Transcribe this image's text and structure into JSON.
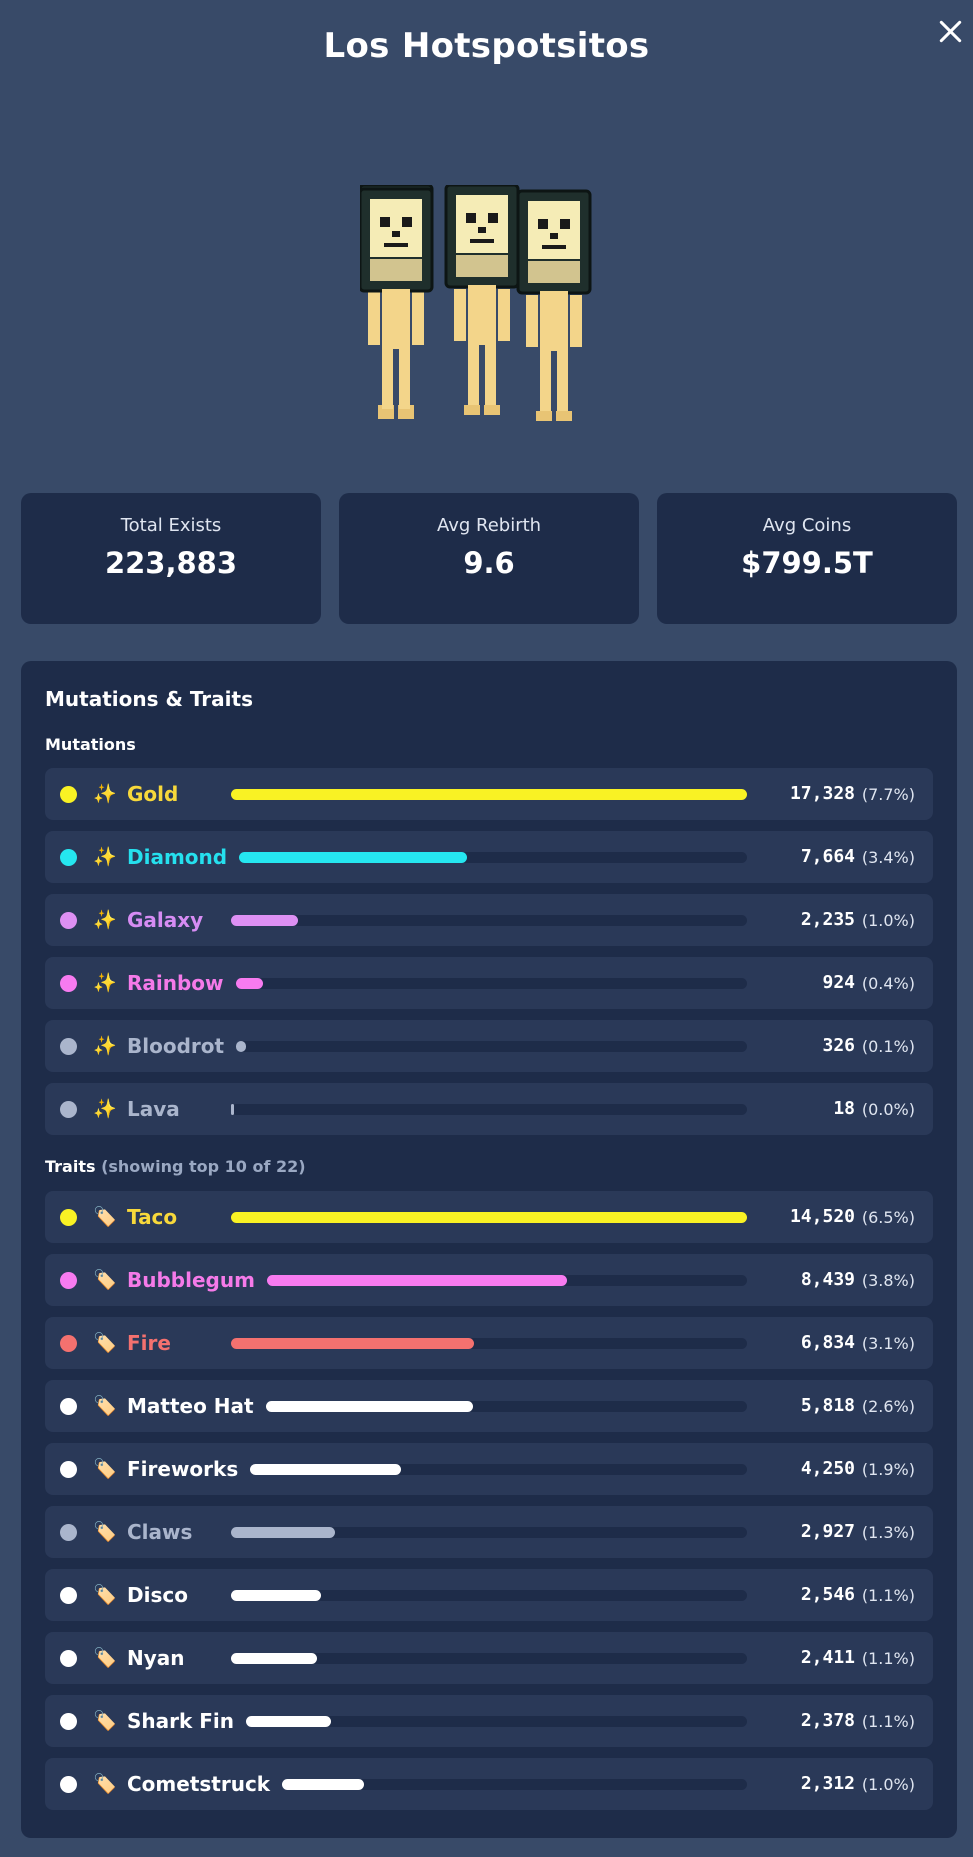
{
  "header": {
    "title": "Los Hotspotsitos"
  },
  "stats": [
    {
      "label": "Total Exists",
      "value": "223,883"
    },
    {
      "label": "Avg Rebirth",
      "value": "9.6"
    },
    {
      "label": "Avg Coins",
      "value": "$799.5T"
    }
  ],
  "panel": {
    "title": "Mutations & Traits",
    "mutations_title": "Mutations",
    "traits_title": "Traits",
    "traits_note": "(showing top 10 of 22)"
  },
  "mutations": [
    {
      "emoji": "✨",
      "name": "Gold",
      "count": "17,328",
      "pct": "(7.7%)",
      "fraction": 1.0,
      "color": "#f9f224",
      "text_color": "#f7d83b"
    },
    {
      "emoji": "✨",
      "name": "Diamond",
      "count": "7,664",
      "pct": "(3.4%)",
      "fraction": 0.442,
      "color": "#25e7f0",
      "text_color": "#25e0ee"
    },
    {
      "emoji": "✨",
      "name": "Galaxy",
      "count": "2,235",
      "pct": "(1.0%)",
      "fraction": 0.129,
      "color": "#dd90f3",
      "text_color": "#d68cf3"
    },
    {
      "emoji": "✨",
      "name": "Rainbow",
      "count": "924",
      "pct": "(0.4%)",
      "fraction": 0.053,
      "color": "#f77bf0",
      "text_color": "#f57ae9"
    },
    {
      "emoji": "✨",
      "name": "Bloodrot",
      "count": "326",
      "pct": "(0.1%)",
      "fraction": 0.019,
      "color": "#aab5cc",
      "text_color": "#aab5cc"
    },
    {
      "emoji": "✨",
      "name": "Lava",
      "count": "18",
      "pct": "(0.0%)",
      "fraction": 0.002,
      "color": "#aab5cc",
      "text_color": "#aab5cc"
    }
  ],
  "traits": [
    {
      "emoji": "🏷️",
      "name": "Taco",
      "count": "14,520",
      "pct": "(6.5%)",
      "fraction": 1.0,
      "color": "#f9f224",
      "text_color": "#f7d83b"
    },
    {
      "emoji": "🏷️",
      "name": "Bubblegum",
      "count": "8,439",
      "pct": "(3.8%)",
      "fraction": 0.581,
      "color": "#f77bf0",
      "text_color": "#f57ae9"
    },
    {
      "emoji": "🏷️",
      "name": "Fire",
      "count": "6,834",
      "pct": "(3.1%)",
      "fraction": 0.471,
      "color": "#f4716f",
      "text_color": "#f4716f"
    },
    {
      "emoji": "🏷️",
      "name": "Matteo Hat",
      "count": "5,818",
      "pct": "(2.6%)",
      "fraction": 0.401,
      "color": "#ffffff",
      "text_color": "#ffffff"
    },
    {
      "emoji": "🏷️",
      "name": "Fireworks",
      "count": "4,250",
      "pct": "(1.9%)",
      "fraction": 0.293,
      "color": "#ffffff",
      "text_color": "#ffffff"
    },
    {
      "emoji": "🏷️",
      "name": "Claws",
      "count": "2,927",
      "pct": "(1.3%)",
      "fraction": 0.202,
      "color": "#aab5cc",
      "text_color": "#aab5cc"
    },
    {
      "emoji": "🏷️",
      "name": "Disco",
      "count": "2,546",
      "pct": "(1.1%)",
      "fraction": 0.175,
      "color": "#ffffff",
      "text_color": "#ffffff"
    },
    {
      "emoji": "🏷️",
      "name": "Nyan",
      "count": "2,411",
      "pct": "(1.1%)",
      "fraction": 0.166,
      "color": "#ffffff",
      "text_color": "#ffffff"
    },
    {
      "emoji": "🏷️",
      "name": "Shark Fin",
      "count": "2,378",
      "pct": "(1.1%)",
      "fraction": 0.164,
      "color": "#ffffff",
      "text_color": "#ffffff"
    },
    {
      "emoji": "🏷️",
      "name": "Cometstruck",
      "count": "2,312",
      "pct": "(1.0%)",
      "fraction": 0.159,
      "color": "#ffffff",
      "text_color": "#ffffff"
    }
  ]
}
